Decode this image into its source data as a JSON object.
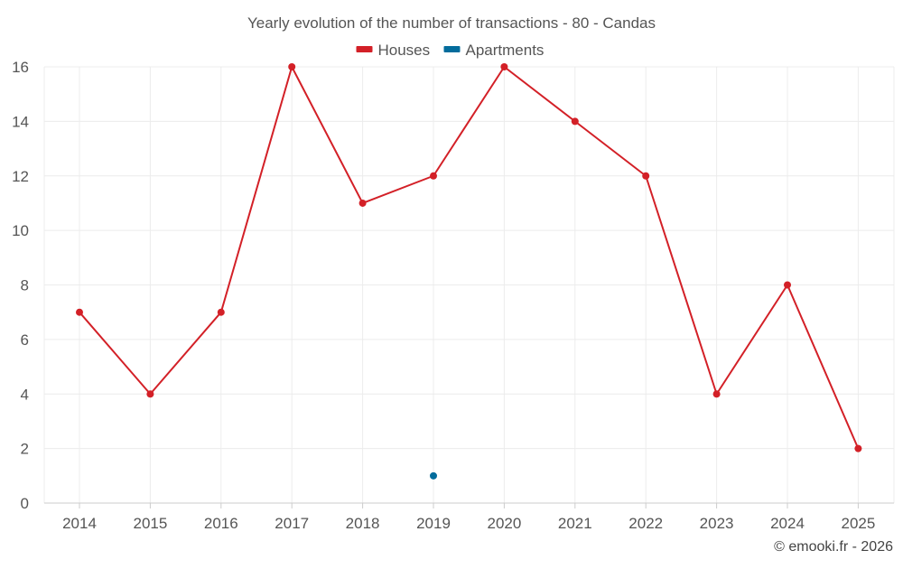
{
  "chart_data": {
    "type": "line",
    "title": "Yearly evolution of the number of transactions - 80 - Candas",
    "categories": [
      "2014",
      "2015",
      "2016",
      "2017",
      "2018",
      "2019",
      "2020",
      "2021",
      "2022",
      "2023",
      "2024",
      "2025"
    ],
    "series": [
      {
        "name": "Houses",
        "color": "#d32027",
        "values": [
          7,
          4,
          7,
          16,
          11,
          12,
          16,
          14,
          12,
          4,
          8,
          2
        ]
      },
      {
        "name": "Apartments",
        "color": "#036c9c",
        "values": [
          null,
          null,
          null,
          null,
          null,
          1,
          null,
          null,
          null,
          null,
          null,
          null
        ]
      }
    ],
    "y_ticks": [
      "0",
      "2",
      "4",
      "6",
      "8",
      "10",
      "12",
      "14",
      "16"
    ],
    "ylim": [
      0,
      16
    ],
    "xlabel": "",
    "ylabel": "",
    "grid": true,
    "legend_position": "top-center"
  },
  "credit": "© emooki.fr - 2026"
}
